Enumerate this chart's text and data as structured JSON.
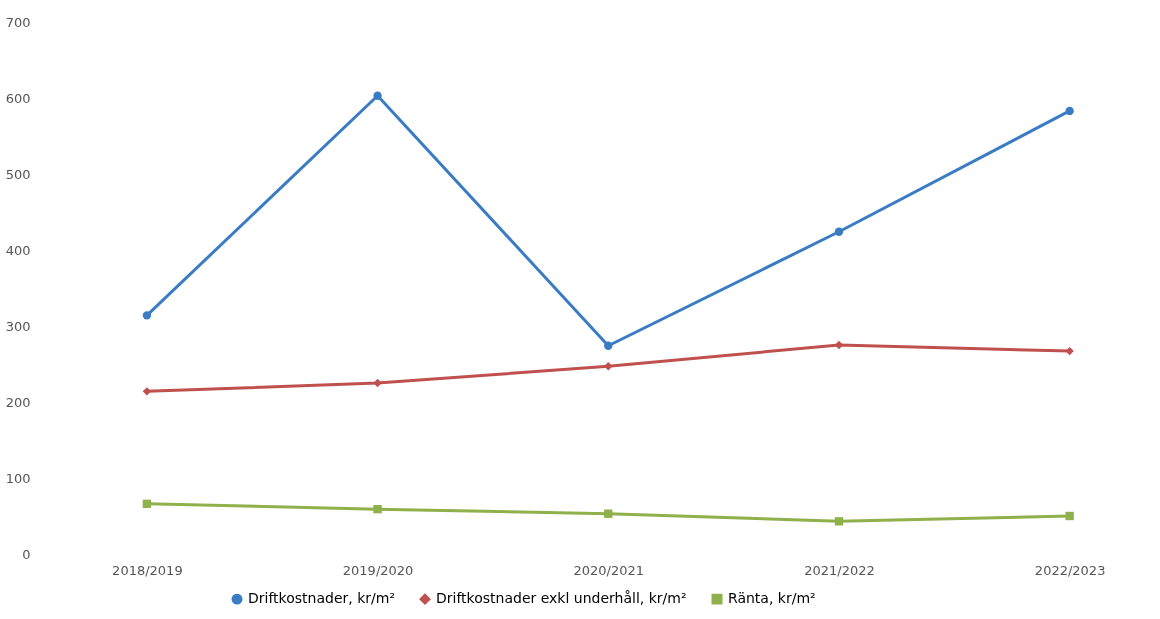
{
  "chart_data": {
    "type": "line",
    "categories": [
      "2018/2019",
      "2019/2020",
      "2020/2021",
      "2021/2022",
      "2022/2023"
    ],
    "ylim": [
      0,
      700
    ],
    "yticks": [
      0,
      100,
      200,
      300,
      400,
      500,
      600,
      700
    ],
    "grid": false,
    "legend": "bottom",
    "series": [
      {
        "name": "Driftkostnader, kr/m²",
        "color": "#3a7cc4",
        "marker": "circle",
        "values": [
          314,
          603,
          274,
          424,
          583
        ]
      },
      {
        "name": "Driftkostnader exkl underhåll, kr/m²",
        "color": "#c0504d",
        "marker": "diamond",
        "values": [
          214,
          225,
          247,
          275,
          267
        ]
      },
      {
        "name": "Ränta, kr/m²",
        "color": "#8fb04a",
        "marker": "square",
        "values": [
          66,
          59,
          53,
          43,
          50
        ]
      }
    ]
  }
}
